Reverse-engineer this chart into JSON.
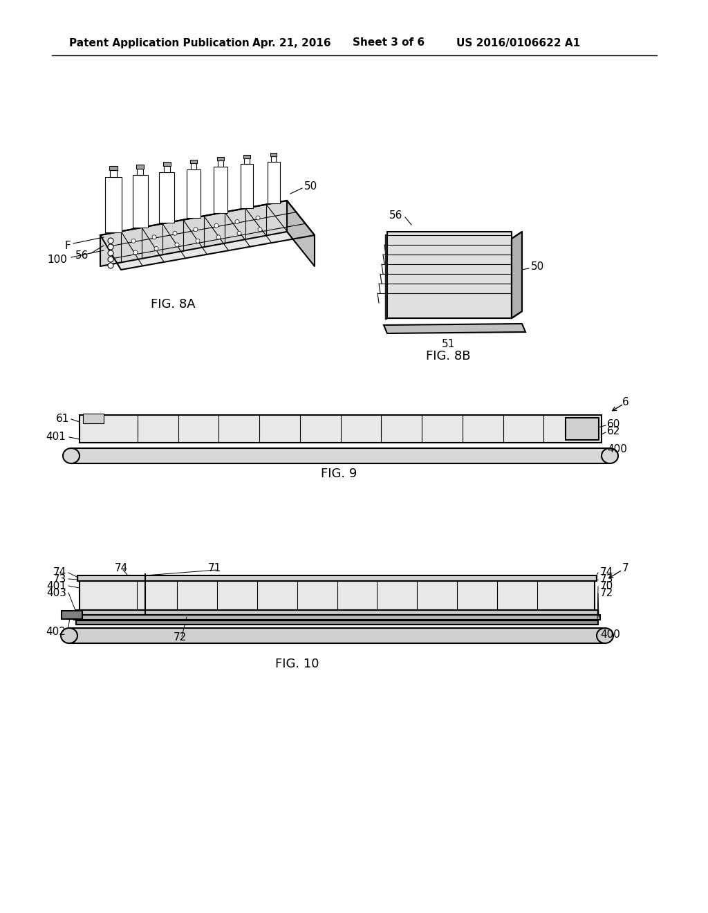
{
  "bg_color": "#ffffff",
  "header_text": "Patent Application Publication",
  "header_date": "Apr. 21, 2016",
  "header_sheet": "Sheet 3 of 6",
  "header_patent": "US 2016/0106622 A1",
  "fig8a_label": "FIG. 8A",
  "fig8b_label": "FIG. 8B",
  "fig9_label": "FIG. 9",
  "fig10_label": "FIG. 10",
  "line_color": "#000000",
  "line_width": 1.5,
  "thin_line": 0.8,
  "font_size_header": 11,
  "font_size_label": 13,
  "font_size_ref": 11
}
